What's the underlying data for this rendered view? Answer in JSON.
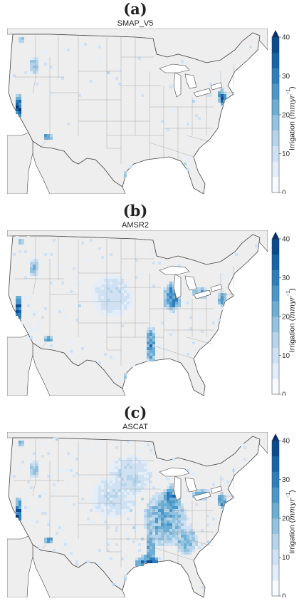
{
  "panels": [
    {
      "label": "(a)",
      "title": "SMAP_V5",
      "intensity": "low"
    },
    {
      "label": "(b)",
      "title": "AMSR2",
      "intensity": "medium"
    },
    {
      "label": "(c)",
      "title": "ASCAT",
      "intensity": "high"
    }
  ],
  "colorbar": {
    "label_prefix": "Irrigation (",
    "unit": "mmyr",
    "exponent": "−1",
    "label_suffix": ")",
    "ticks": [
      "0",
      "10",
      "20",
      "30",
      "40"
    ],
    "colors": [
      "#f7fbff",
      "#e3eef9",
      "#cfe1f2",
      "#b5d4e9",
      "#93c3df",
      "#6daed5",
      "#4b97c9",
      "#2f7ebc",
      "#1864aa",
      "#0a4a90",
      "#08306b"
    ]
  },
  "colors": {
    "land": "#eeeeee",
    "ocean": "#ffffff",
    "border": "#777777",
    "coast": "#444444"
  }
}
